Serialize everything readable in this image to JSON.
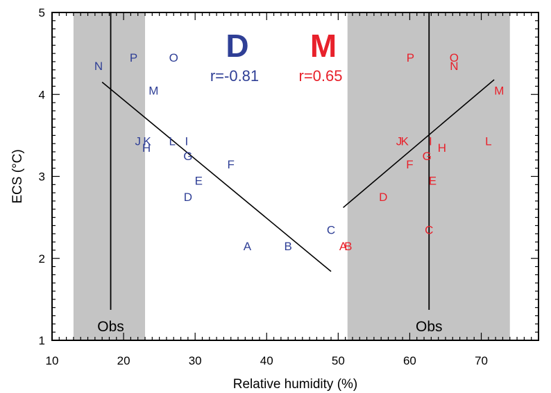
{
  "chart_data": {
    "type": "scatter",
    "xlabel": "Relative humidity (%)",
    "ylabel": "ECS (°C)",
    "xlim": [
      10,
      78
    ],
    "ylim": [
      1,
      5
    ],
    "x_ticks": [
      10,
      20,
      30,
      40,
      50,
      60,
      70
    ],
    "y_ticks": [
      1,
      2,
      3,
      4,
      5
    ],
    "grid": false,
    "colors": {
      "D": "#2f3f96",
      "M": "#e8212b",
      "obs_band": "#c4c4c4",
      "line": "#000000"
    },
    "obs_bands": [
      {
        "label": "Obs",
        "x_range": [
          13,
          23
        ],
        "x_line": 18.2
      },
      {
        "label": "Obs",
        "x_range": [
          51.3,
          74
        ],
        "x_line": 62.7
      }
    ],
    "groups": [
      {
        "label": "D",
        "r_text": "r=-0.81",
        "color": "#2f3f96",
        "regression": {
          "x": [
            17.0,
            49.0
          ],
          "y": [
            4.15,
            1.84
          ]
        },
        "points": [
          {
            "label": "A",
            "x": 37.3,
            "y": 2.15
          },
          {
            "label": "B",
            "x": 43.0,
            "y": 2.15
          },
          {
            "label": "C",
            "x": 49.0,
            "y": 2.35
          },
          {
            "label": "D",
            "x": 29.0,
            "y": 2.75
          },
          {
            "label": "E",
            "x": 30.5,
            "y": 2.95
          },
          {
            "label": "F",
            "x": 35.0,
            "y": 3.15
          },
          {
            "label": "G",
            "x": 29.0,
            "y": 3.25
          },
          {
            "label": "H",
            "x": 23.2,
            "y": 3.35
          },
          {
            "label": "I",
            "x": 28.8,
            "y": 3.43
          },
          {
            "label": "J",
            "x": 22.0,
            "y": 3.43
          },
          {
            "label": "K",
            "x": 23.3,
            "y": 3.43
          },
          {
            "label": "L",
            "x": 26.8,
            "y": 3.43
          },
          {
            "label": "M",
            "x": 24.2,
            "y": 4.05
          },
          {
            "label": "N",
            "x": 16.5,
            "y": 4.35
          },
          {
            "label": "O",
            "x": 27.0,
            "y": 4.45
          },
          {
            "label": "P",
            "x": 21.4,
            "y": 4.45
          }
        ]
      },
      {
        "label": "M",
        "r_text": "r=0.65",
        "color": "#e8212b",
        "regression": {
          "x": [
            50.7,
            71.8
          ],
          "y": [
            2.62,
            4.18
          ]
        },
        "points": [
          {
            "label": "A",
            "x": 50.7,
            "y": 2.15
          },
          {
            "label": "B",
            "x": 51.4,
            "y": 2.15
          },
          {
            "label": "C",
            "x": 62.7,
            "y": 2.35
          },
          {
            "label": "D",
            "x": 56.3,
            "y": 2.75
          },
          {
            "label": "E",
            "x": 63.2,
            "y": 2.95
          },
          {
            "label": "F",
            "x": 60.0,
            "y": 3.15
          },
          {
            "label": "G",
            "x": 62.4,
            "y": 3.25
          },
          {
            "label": "H",
            "x": 64.5,
            "y": 3.35
          },
          {
            "label": "I",
            "x": 62.9,
            "y": 3.43
          },
          {
            "label": "J",
            "x": 58.5,
            "y": 3.43
          },
          {
            "label": "K",
            "x": 59.3,
            "y": 3.43
          },
          {
            "label": "L",
            "x": 71.0,
            "y": 3.43
          },
          {
            "label": "M",
            "x": 72.5,
            "y": 4.05
          },
          {
            "label": "N",
            "x": 66.2,
            "y": 4.35
          },
          {
            "label": "O",
            "x": 66.2,
            "y": 4.45
          },
          {
            "label": "P",
            "x": 60.1,
            "y": 4.45
          }
        ]
      }
    ]
  }
}
